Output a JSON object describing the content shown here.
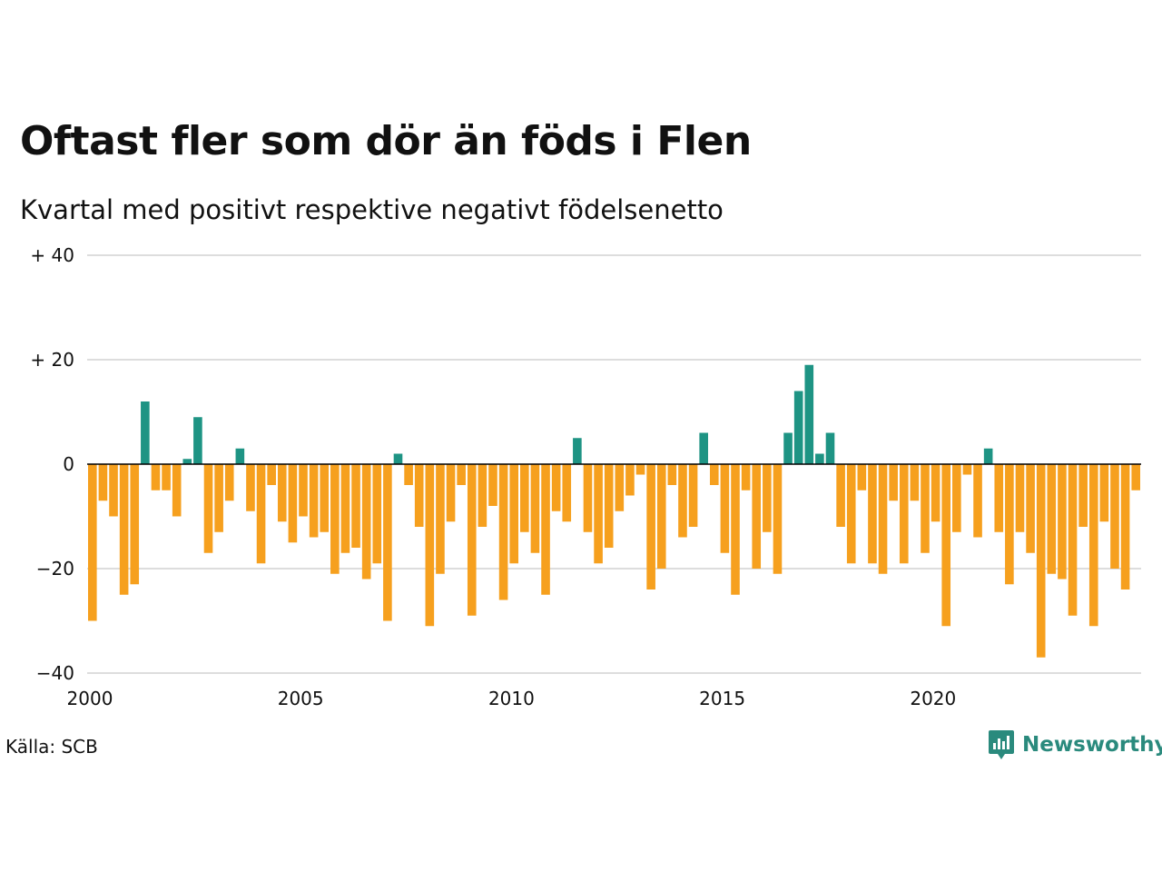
{
  "title": "Oftast fler som dör än föds i Flen",
  "subtitle": "Kvartal med positivt respektive negativt födelsenetto",
  "source": "Källa: SCB",
  "brand": "Newsworthy",
  "colors": {
    "positive": "#1e9484",
    "negative": "#f6a01e",
    "grid": "#dddddd",
    "zero": "#000000",
    "brand": "#2a8a7d"
  },
  "icons": {
    "brand_logo": "bar-chart-speech-bubble-icon"
  },
  "chart_data": {
    "type": "bar",
    "title": "Oftast fler som dör än föds i Flen",
    "subtitle": "Kvartal med positivt respektive negativt födelsenetto",
    "xlabel": "",
    "ylabel": "",
    "ylim": [
      -40,
      40
    ],
    "xlim": [
      2000,
      2025
    ],
    "yticks": [
      -40,
      -20,
      0,
      20,
      40
    ],
    "ytick_labels": [
      "−40",
      "−20",
      "0",
      "+ 20",
      "+ 40"
    ],
    "xticks": [
      2000,
      2005,
      2010,
      2015,
      2020
    ],
    "xtick_labels": [
      "2000",
      "2005",
      "2010",
      "2015",
      "2020"
    ],
    "grid": true,
    "x": [
      "2000 K1",
      "2000 K2",
      "2000 K3",
      "2000 K4",
      "2001 K1",
      "2001 K2",
      "2001 K3",
      "2001 K4",
      "2002 K1",
      "2002 K2",
      "2002 K3",
      "2002 K4",
      "2003 K1",
      "2003 K2",
      "2003 K3",
      "2003 K4",
      "2004 K1",
      "2004 K2",
      "2004 K3",
      "2004 K4",
      "2005 K1",
      "2005 K2",
      "2005 K3",
      "2005 K4",
      "2006 K1",
      "2006 K2",
      "2006 K3",
      "2006 K4",
      "2007 K1",
      "2007 K2",
      "2007 K3",
      "2007 K4",
      "2008 K1",
      "2008 K2",
      "2008 K3",
      "2008 K4",
      "2009 K1",
      "2009 K2",
      "2009 K3",
      "2009 K4",
      "2010 K1",
      "2010 K2",
      "2010 K3",
      "2010 K4",
      "2011 K1",
      "2011 K2",
      "2011 K3",
      "2011 K4",
      "2012 K1",
      "2012 K2",
      "2012 K3",
      "2012 K4",
      "2013 K1",
      "2013 K2",
      "2013 K3",
      "2013 K4",
      "2014 K1",
      "2014 K2",
      "2014 K3",
      "2014 K4",
      "2015 K1",
      "2015 K2",
      "2015 K3",
      "2015 K4",
      "2016 K1",
      "2016 K2",
      "2016 K3",
      "2016 K4",
      "2017 K1",
      "2017 K2",
      "2017 K3",
      "2017 K4",
      "2018 K1",
      "2018 K2",
      "2018 K3",
      "2018 K4",
      "2019 K1",
      "2019 K2",
      "2019 K3",
      "2019 K4",
      "2020 K1",
      "2020 K2",
      "2020 K3",
      "2020 K4",
      "2021 K1",
      "2021 K2",
      "2021 K3",
      "2021 K4",
      "2022 K1",
      "2022 K2",
      "2022 K3",
      "2022 K4",
      "2023 K1",
      "2023 K2",
      "2023 K3",
      "2023 K4",
      "2024 K1",
      "2024 K2",
      "2024 K3",
      "2024 K4"
    ],
    "values": [
      -30,
      -7,
      -10,
      -25,
      -23,
      12,
      -5,
      -5,
      -10,
      1,
      9,
      -17,
      -13,
      -7,
      3,
      -9,
      -19,
      -4,
      -11,
      -15,
      -10,
      -14,
      -13,
      -21,
      -17,
      -16,
      -22,
      -19,
      -30,
      2,
      -4,
      -12,
      -31,
      -21,
      -11,
      -4,
      -29,
      -12,
      -8,
      -26,
      -19,
      -13,
      -17,
      -25,
      -9,
      -11,
      5,
      -13,
      -19,
      -16,
      -9,
      -6,
      -2,
      -24,
      -20,
      -4,
      -14,
      -12,
      6,
      -4,
      -17,
      -25,
      -5,
      -20,
      -13,
      -21,
      6,
      14,
      19,
      2,
      6,
      -12,
      -19,
      -5,
      -19,
      -21,
      -7,
      -19,
      -7,
      -17,
      -11,
      -31,
      -13,
      -2,
      -14,
      3,
      -13,
      -23,
      -13,
      -17,
      -37,
      -21,
      -22,
      -29,
      -12,
      -31,
      -11,
      -20,
      -24,
      -5
    ]
  }
}
